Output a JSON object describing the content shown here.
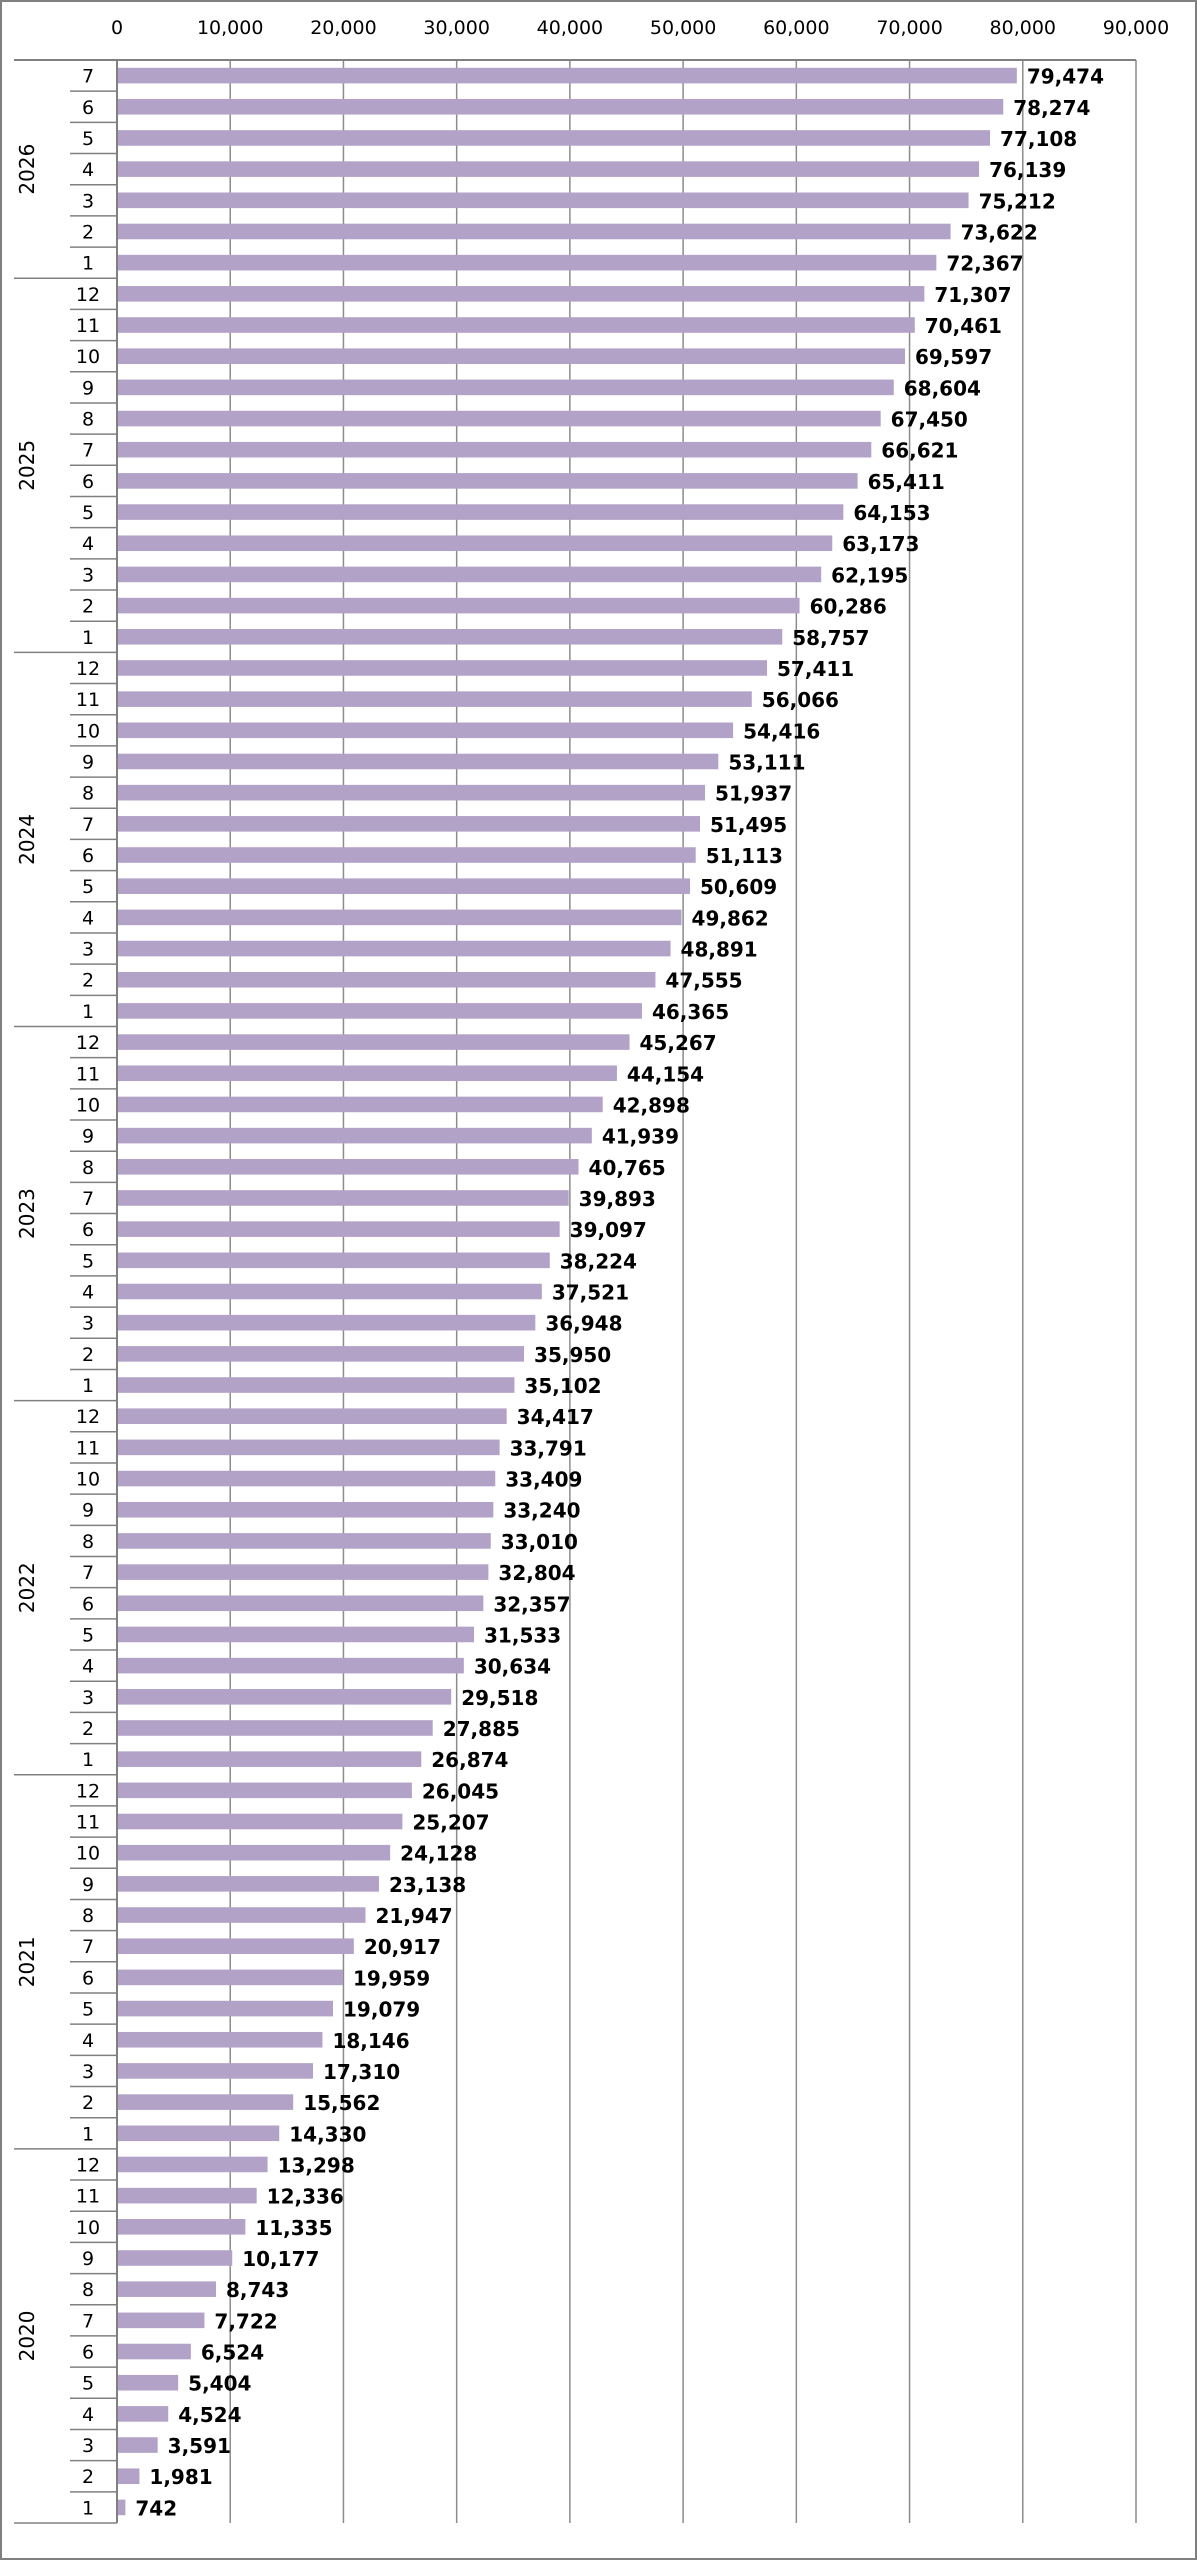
{
  "chart_data": {
    "type": "bar",
    "orientation": "horizontal",
    "title": "",
    "xlabel": "",
    "ylabel": "",
    "xlim": [
      0,
      90000
    ],
    "x_ticks": [
      0,
      10000,
      20000,
      30000,
      40000,
      50000,
      60000,
      70000,
      80000,
      90000
    ],
    "x_tick_labels": [
      "0",
      "10,000",
      "20,000",
      "30,000",
      "40,000",
      "50,000",
      "60,000",
      "70,000",
      "80,000",
      "90,000"
    ],
    "x_axis_position": "top",
    "grid": "vertical",
    "legend": "none",
    "bar_color": "#b3a2c7",
    "groups": [
      {
        "year": "2026",
        "months": [
          "7",
          "6",
          "5",
          "4",
          "3",
          "2",
          "1"
        ],
        "values": [
          79474,
          78274,
          77108,
          76139,
          75212,
          73622,
          72367
        ],
        "labels": [
          "79,474",
          "78,274",
          "77,108",
          "76,139",
          "75,212",
          "73,622",
          "72,367"
        ]
      },
      {
        "year": "2025",
        "months": [
          "12",
          "11",
          "10",
          "9",
          "8",
          "7",
          "6",
          "5",
          "4",
          "3",
          "2",
          "1"
        ],
        "values": [
          71307,
          70461,
          69597,
          68604,
          67450,
          66621,
          65411,
          64153,
          63173,
          62195,
          60286,
          58757
        ],
        "labels": [
          "71,307",
          "70,461",
          "69,597",
          "68,604",
          "67,450",
          "66,621",
          "65,411",
          "64,153",
          "63,173",
          "62,195",
          "60,286",
          "58,757"
        ]
      },
      {
        "year": "2024",
        "months": [
          "12",
          "11",
          "10",
          "9",
          "8",
          "7",
          "6",
          "5",
          "4",
          "3",
          "2",
          "1"
        ],
        "values": [
          57411,
          56066,
          54416,
          53111,
          51937,
          51495,
          51113,
          50609,
          49862,
          48891,
          47555,
          46365
        ],
        "labels": [
          "57,411",
          "56,066",
          "54,416",
          "53,111",
          "51,937",
          "51,495",
          "51,113",
          "50,609",
          "49,862",
          "48,891",
          "47,555",
          "46,365"
        ]
      },
      {
        "year": "2023",
        "months": [
          "12",
          "11",
          "10",
          "9",
          "8",
          "7",
          "6",
          "5",
          "4",
          "3",
          "2",
          "1"
        ],
        "values": [
          45267,
          44154,
          42898,
          41939,
          40765,
          39893,
          39097,
          38224,
          37521,
          36948,
          35950,
          35102
        ],
        "labels": [
          "45,267",
          "44,154",
          "42,898",
          "41,939",
          "40,765",
          "39,893",
          "39,097",
          "38,224",
          "37,521",
          "36,948",
          "35,950",
          "35,102"
        ]
      },
      {
        "year": "2022",
        "months": [
          "12",
          "11",
          "10",
          "9",
          "8",
          "7",
          "6",
          "5",
          "4",
          "3",
          "2",
          "1"
        ],
        "values": [
          34417,
          33791,
          33409,
          33240,
          33010,
          32804,
          32357,
          31533,
          30634,
          29518,
          27885,
          26874
        ],
        "labels": [
          "34,417",
          "33,791",
          "33,409",
          "33,240",
          "33,010",
          "32,804",
          "32,357",
          "31,533",
          "30,634",
          "29,518",
          "27,885",
          "26,874"
        ]
      },
      {
        "year": "2021",
        "months": [
          "12",
          "11",
          "10",
          "9",
          "8",
          "7",
          "6",
          "5",
          "4",
          "3",
          "2",
          "1"
        ],
        "values": [
          26045,
          25207,
          24128,
          23138,
          21947,
          20917,
          19959,
          19079,
          18146,
          17310,
          15562,
          14330
        ],
        "labels": [
          "26,045",
          "25,207",
          "24,128",
          "23,138",
          "21,947",
          "20,917",
          "19,959",
          "19,079",
          "18,146",
          "17,310",
          "15,562",
          "14,330"
        ]
      },
      {
        "year": "2020",
        "months": [
          "12",
          "11",
          "10",
          "9",
          "8",
          "7",
          "6",
          "5",
          "4",
          "3",
          "2",
          "1"
        ],
        "values": [
          13298,
          12336,
          11335,
          10177,
          8743,
          7722,
          6524,
          5404,
          4524,
          3591,
          1981,
          742
        ],
        "labels": [
          "13,298",
          "12,336",
          "11,335",
          "10,177",
          "8,743",
          "7,722",
          "6,524",
          "5,404",
          "4,524",
          "3,591",
          "1,981",
          "742"
        ]
      }
    ]
  }
}
